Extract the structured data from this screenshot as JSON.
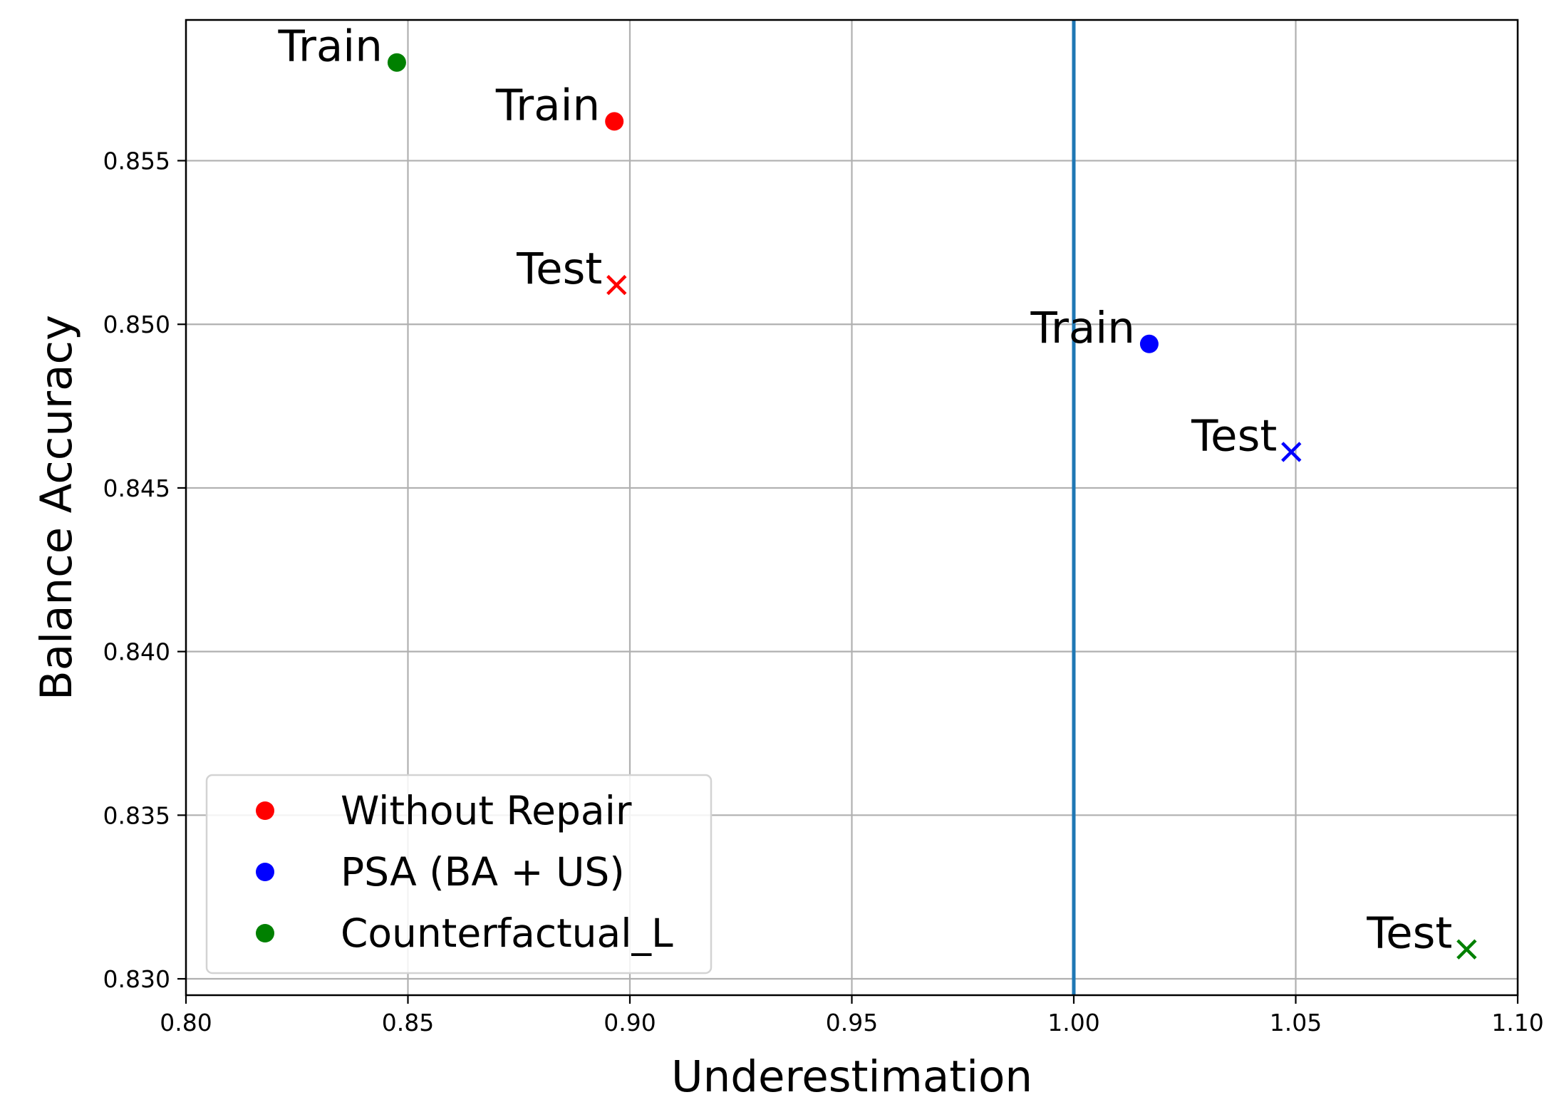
{
  "chart_data": {
    "type": "scatter",
    "title": "",
    "xlabel": "Underestimation",
    "ylabel": "Balance Accuracy",
    "xlim": [
      0.8,
      1.1
    ],
    "ylim": [
      0.8295,
      0.8593
    ],
    "x_ticks": [
      "0.80",
      "0.85",
      "0.90",
      "0.95",
      "1.00",
      "1.05",
      "1.10"
    ],
    "y_ticks": [
      "0.830",
      "0.835",
      "0.840",
      "0.845",
      "0.850",
      "0.855"
    ],
    "grid": true,
    "reference_line": {
      "x": 1.0,
      "color": "#1f77b4"
    },
    "legend": {
      "placement": "lower-left"
    },
    "series": [
      {
        "name": "Without Repair",
        "color": "#ff0000",
        "points": [
          {
            "label": "Train",
            "marker": "circle",
            "x": 0.8965,
            "y": 0.8562
          },
          {
            "label": "Test",
            "marker": "x",
            "x": 0.897,
            "y": 0.8512
          }
        ]
      },
      {
        "name": "PSA (BA + US)",
        "color": "#0000ff",
        "points": [
          {
            "label": "Train",
            "marker": "circle",
            "x": 1.017,
            "y": 0.8494
          },
          {
            "label": "Test",
            "marker": "x",
            "x": 1.049,
            "y": 0.8461
          }
        ]
      },
      {
        "name": "Counterfactual_L",
        "color": "#008000",
        "points": [
          {
            "label": "Train",
            "marker": "circle",
            "x": 0.8475,
            "y": 0.858
          },
          {
            "label": "Test",
            "marker": "x",
            "x": 1.0885,
            "y": 0.8309
          }
        ]
      }
    ]
  }
}
